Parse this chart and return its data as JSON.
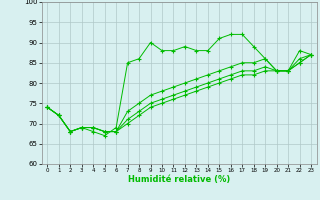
{
  "xlabel": "Humidité relative (%)",
  "background_color": "#d8f0f0",
  "grid_color": "#b0c8c8",
  "line_color": "#00bb00",
  "ylim": [
    60,
    100
  ],
  "xlim": [
    -0.5,
    23.5
  ],
  "yticks": [
    60,
    65,
    70,
    75,
    80,
    85,
    90,
    95,
    100
  ],
  "xticks": [
    0,
    1,
    2,
    3,
    4,
    5,
    6,
    7,
    8,
    9,
    10,
    11,
    12,
    13,
    14,
    15,
    16,
    17,
    18,
    19,
    20,
    21,
    22,
    23
  ],
  "series": [
    [
      74,
      72,
      68,
      69,
      68,
      67,
      69,
      85,
      86,
      90,
      88,
      88,
      89,
      88,
      88,
      91,
      92,
      92,
      89,
      86,
      83,
      83,
      88,
      87
    ],
    [
      74,
      72,
      68,
      69,
      69,
      68,
      68,
      73,
      75,
      77,
      78,
      79,
      80,
      81,
      82,
      83,
      84,
      85,
      85,
      86,
      83,
      83,
      86,
      87
    ],
    [
      74,
      72,
      68,
      69,
      69,
      68,
      68,
      71,
      73,
      75,
      76,
      77,
      78,
      79,
      80,
      81,
      82,
      83,
      83,
      84,
      83,
      83,
      85,
      87
    ],
    [
      74,
      72,
      68,
      69,
      69,
      68,
      68,
      70,
      72,
      74,
      75,
      76,
      77,
      78,
      79,
      80,
      81,
      82,
      82,
      83,
      83,
      83,
      85,
      87
    ]
  ]
}
